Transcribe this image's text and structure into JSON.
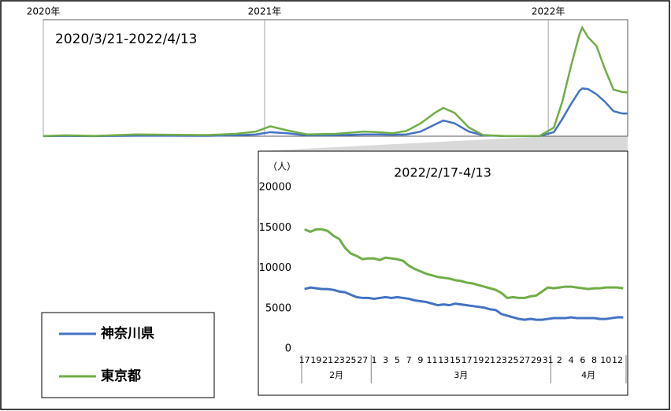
{
  "chart_data": [
    {
      "type": "line",
      "title": "2020/3/21-2022/4/13",
      "x": [
        2020.22,
        2020.3,
        2020.4,
        2020.55,
        2020.65,
        2020.8,
        2020.9,
        2020.97,
        2021.02,
        2021.08,
        2021.15,
        2021.25,
        2021.35,
        2021.4,
        2021.45,
        2021.5,
        2021.55,
        2021.6,
        2021.63,
        2021.67,
        2021.72,
        2021.77,
        2021.85,
        2021.97,
        2022.02,
        2022.05,
        2022.08,
        2022.11,
        2022.12,
        2022.14,
        2022.17,
        2022.2,
        2022.23,
        2022.26,
        2022.28
      ],
      "series": [
        {
          "color": "#4472c4",
          "values": [
            10,
            50,
            20,
            80,
            80,
            60,
            150,
            300,
            700,
            500,
            150,
            150,
            300,
            300,
            250,
            300,
            800,
            2000,
            2700,
            2200,
            800,
            150,
            20,
            40,
            700,
            3000,
            5500,
            7800,
            8200,
            8100,
            7200,
            5900,
            4300,
            3900,
            3900
          ]
        },
        {
          "color": "#70ad47",
          "values": [
            30,
            150,
            50,
            300,
            250,
            200,
            400,
            800,
            1700,
            1000,
            300,
            400,
            800,
            700,
            500,
            900,
            2200,
            4000,
            4860,
            4000,
            1500,
            200,
            30,
            50,
            1500,
            6000,
            12000,
            17500,
            18650,
            17000,
            15500,
            11500,
            8000,
            7600,
            7500
          ]
        }
      ],
      "xlim": [
        2020.22,
        2022.28
      ],
      "xticks": [
        {
          "value": 2020.22,
          "label": "2020年"
        },
        {
          "value": 2021,
          "label": "2021年"
        },
        {
          "value": 2022,
          "label": "2022年"
        }
      ],
      "ylim": [
        0,
        20000
      ]
    },
    {
      "type": "line",
      "title": "2022/2/17-4/13",
      "y_label": "（人）",
      "categories": [
        "17",
        null,
        "19",
        null,
        "21",
        null,
        "23",
        null,
        "25",
        null,
        "27",
        null,
        "1",
        null,
        "3",
        null,
        "5",
        null,
        "7",
        null,
        "9",
        null,
        "11",
        null,
        "13",
        null,
        "15",
        null,
        "17",
        null,
        "19",
        null,
        "21",
        null,
        "23",
        null,
        "25",
        null,
        "27",
        null,
        "29",
        null,
        "31",
        null,
        "2",
        null,
        "4",
        null,
        "6",
        null,
        "8",
        null,
        "10",
        null,
        "12",
        null
      ],
      "groups": [
        "2月",
        "3月",
        "4月"
      ],
      "series": [
        {
          "name": "神奈川県",
          "color": "#4472c4",
          "values": [
            7400,
            7600,
            7500,
            7400,
            7400,
            7300,
            7100,
            7000,
            6700,
            6400,
            6300,
            6300,
            6200,
            6300,
            6400,
            6300,
            6400,
            6300,
            6200,
            6000,
            5900,
            5800,
            5600,
            5400,
            5500,
            5400,
            5600,
            5500,
            5400,
            5300,
            5200,
            5100,
            4900,
            4800,
            4300,
            4100,
            3900,
            3700,
            3600,
            3700,
            3600,
            3600,
            3700,
            3800,
            3800,
            3800,
            3900,
            3800,
            3800,
            3800,
            3800,
            3700,
            3700,
            3800,
            3900,
            3900
          ]
        },
        {
          "name": "東京都",
          "color": "#70ad47",
          "values": [
            14800,
            14500,
            14800,
            14800,
            14600,
            14000,
            13600,
            12500,
            11800,
            11500,
            11100,
            11200,
            11200,
            11000,
            11300,
            11200,
            11100,
            10900,
            10300,
            9900,
            9600,
            9300,
            9100,
            8900,
            8800,
            8700,
            8500,
            8400,
            8200,
            8100,
            7900,
            7700,
            7500,
            7300,
            6900,
            6300,
            6400,
            6300,
            6300,
            6500,
            6600,
            7100,
            7600,
            7500,
            7600,
            7700,
            7700,
            7600,
            7500,
            7400,
            7500,
            7500,
            7600,
            7600,
            7600,
            7500
          ]
        }
      ],
      "ylim": [
        0,
        20000
      ],
      "yticks": [
        0,
        5000,
        10000,
        15000,
        20000
      ]
    }
  ]
}
